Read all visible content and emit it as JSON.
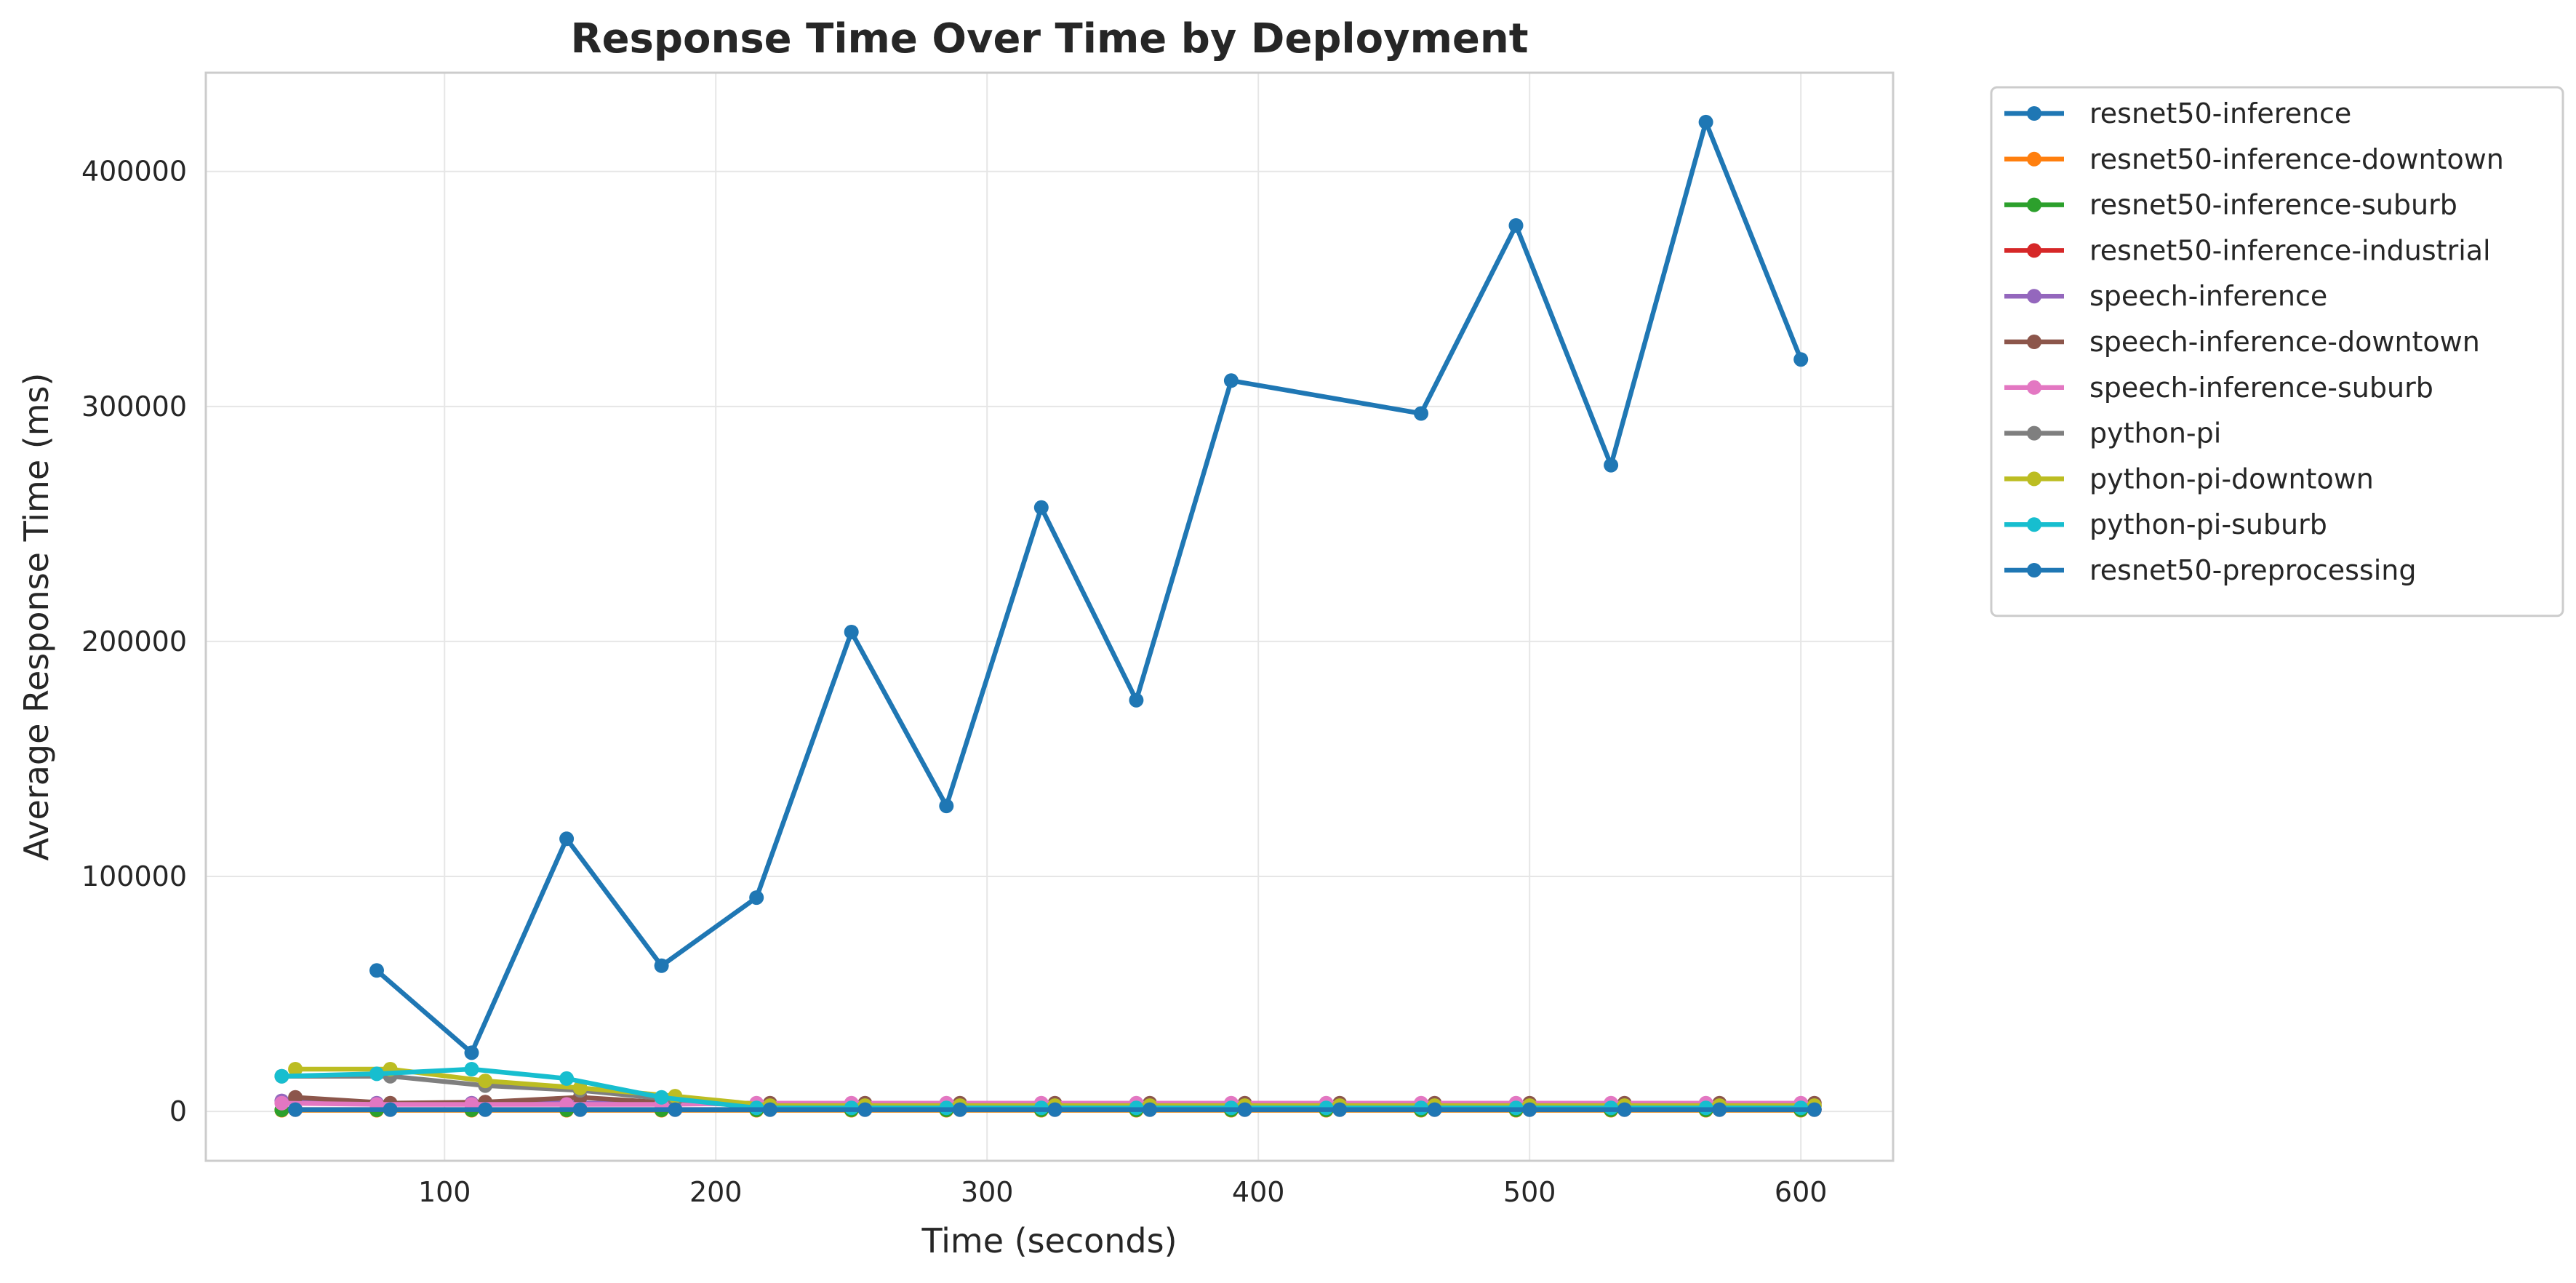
{
  "chart_data": {
    "type": "line",
    "title": "Response Time Over Time by Deployment",
    "xlabel": "Time (seconds)",
    "ylabel": "Average Response Time (ms)",
    "xlim": [
      12,
      634
    ],
    "ylim": [
      -21000,
      442000
    ],
    "xticks": [
      100,
      200,
      300,
      400,
      500,
      600
    ],
    "yticks": [
      0,
      100000,
      200000,
      300000,
      400000
    ],
    "grid": true,
    "legend_position": "outside-upper-right",
    "series": [
      {
        "name": "resnet50-inference",
        "color": "#1f77b4",
        "x": [
          75,
          110,
          145,
          180,
          215,
          250,
          285,
          320,
          355,
          390,
          460,
          495,
          530,
          565,
          600
        ],
        "y": [
          60000,
          25000,
          116000,
          62000,
          91000,
          204000,
          130000,
          257000,
          175000,
          311000,
          297000,
          377000,
          275000,
          421000,
          320000
        ]
      },
      {
        "name": "resnet50-inference-downtown",
        "color": "#ff7f0e",
        "x": [
          40,
          75,
          110,
          145,
          180,
          215,
          250,
          285,
          320,
          355,
          390,
          425,
          460,
          495,
          530,
          565,
          600
        ],
        "y": [
          500,
          500,
          500,
          500,
          500,
          500,
          500,
          500,
          500,
          500,
          500,
          500,
          500,
          500,
          500,
          500,
          500
        ]
      },
      {
        "name": "resnet50-inference-suburb",
        "color": "#2ca02c",
        "x": [
          40,
          75,
          110,
          145,
          180,
          215,
          250,
          285,
          320,
          355,
          390,
          425,
          460,
          495,
          530,
          565,
          600
        ],
        "y": [
          700,
          700,
          700,
          700,
          700,
          700,
          700,
          700,
          700,
          700,
          700,
          700,
          700,
          700,
          700,
          700,
          700
        ]
      },
      {
        "name": "resnet50-inference-industrial",
        "color": "#d62728",
        "x": [
          45,
          80,
          115,
          150,
          185,
          220,
          255,
          290,
          325,
          360,
          395,
          430,
          465,
          500,
          535,
          570,
          605
        ],
        "y": [
          800,
          800,
          800,
          800,
          800,
          800,
          800,
          800,
          800,
          800,
          800,
          800,
          800,
          800,
          800,
          800,
          800
        ]
      },
      {
        "name": "speech-inference",
        "color": "#9467bd",
        "x": [
          40,
          75,
          110,
          145,
          180,
          215,
          250,
          285,
          320,
          355,
          390,
          425,
          460,
          495,
          530,
          565,
          600
        ],
        "y": [
          4500,
          3500,
          3500,
          3500,
          3500,
          3000,
          3000,
          3000,
          3000,
          3000,
          3000,
          3000,
          3000,
          3000,
          3000,
          3000,
          3000
        ]
      },
      {
        "name": "speech-inference-downtown",
        "color": "#8c564b",
        "x": [
          45,
          80,
          115,
          150,
          185,
          220,
          255,
          290,
          325,
          360,
          395,
          430,
          465,
          500,
          535,
          570,
          605
        ],
        "y": [
          6000,
          3500,
          4000,
          6000,
          3500,
          3500,
          3500,
          3500,
          3500,
          3500,
          3500,
          3500,
          3500,
          3500,
          3500,
          3500,
          3500
        ]
      },
      {
        "name": "speech-inference-suburb",
        "color": "#e377c2",
        "x": [
          40,
          75,
          110,
          145,
          180,
          215,
          250,
          285,
          320,
          355,
          390,
          425,
          460,
          495,
          530,
          565,
          600
        ],
        "y": [
          3500,
          3000,
          3000,
          3000,
          3000,
          3500,
          3500,
          3500,
          3500,
          3500,
          3500,
          3500,
          3500,
          3500,
          3500,
          3500,
          3500
        ]
      },
      {
        "name": "python-pi",
        "color": "#7f7f7f",
        "x": [
          40,
          80,
          115,
          150,
          185,
          220,
          255,
          290,
          325,
          360,
          395,
          430,
          465,
          500,
          535,
          570,
          605
        ],
        "y": [
          15000,
          15000,
          11000,
          9000,
          5000,
          2500,
          2500,
          2500,
          2500,
          2500,
          2500,
          2500,
          2500,
          2500,
          2500,
          2500,
          2500
        ]
      },
      {
        "name": "python-pi-downtown",
        "color": "#bcbd22",
        "x": [
          45,
          80,
          115,
          150,
          185,
          220,
          255,
          290,
          325,
          360,
          395,
          430,
          465,
          500,
          535,
          570,
          605
        ],
        "y": [
          18000,
          18000,
          13000,
          10000,
          6500,
          2500,
          2500,
          2500,
          2500,
          2500,
          2500,
          2500,
          2500,
          2500,
          2500,
          2500,
          2500
        ]
      },
      {
        "name": "python-pi-suburb",
        "color": "#17becf",
        "x": [
          40,
          75,
          110,
          145,
          180,
          215,
          250,
          285,
          320,
          355,
          390,
          425,
          460,
          495,
          530,
          565,
          600
        ],
        "y": [
          15000,
          16000,
          18000,
          14000,
          6000,
          1500,
          1500,
          1500,
          1500,
          1500,
          1500,
          1500,
          1500,
          1500,
          1500,
          1500,
          1500
        ]
      },
      {
        "name": "resnet50-preprocessing",
        "color": "#1f77b4",
        "x": [
          45,
          80,
          115,
          150,
          185,
          220,
          255,
          290,
          325,
          360,
          395,
          430,
          465,
          500,
          535,
          570,
          605
        ],
        "y": [
          800,
          800,
          800,
          800,
          800,
          800,
          800,
          800,
          800,
          800,
          800,
          800,
          800,
          800,
          800,
          800,
          800
        ]
      }
    ]
  }
}
